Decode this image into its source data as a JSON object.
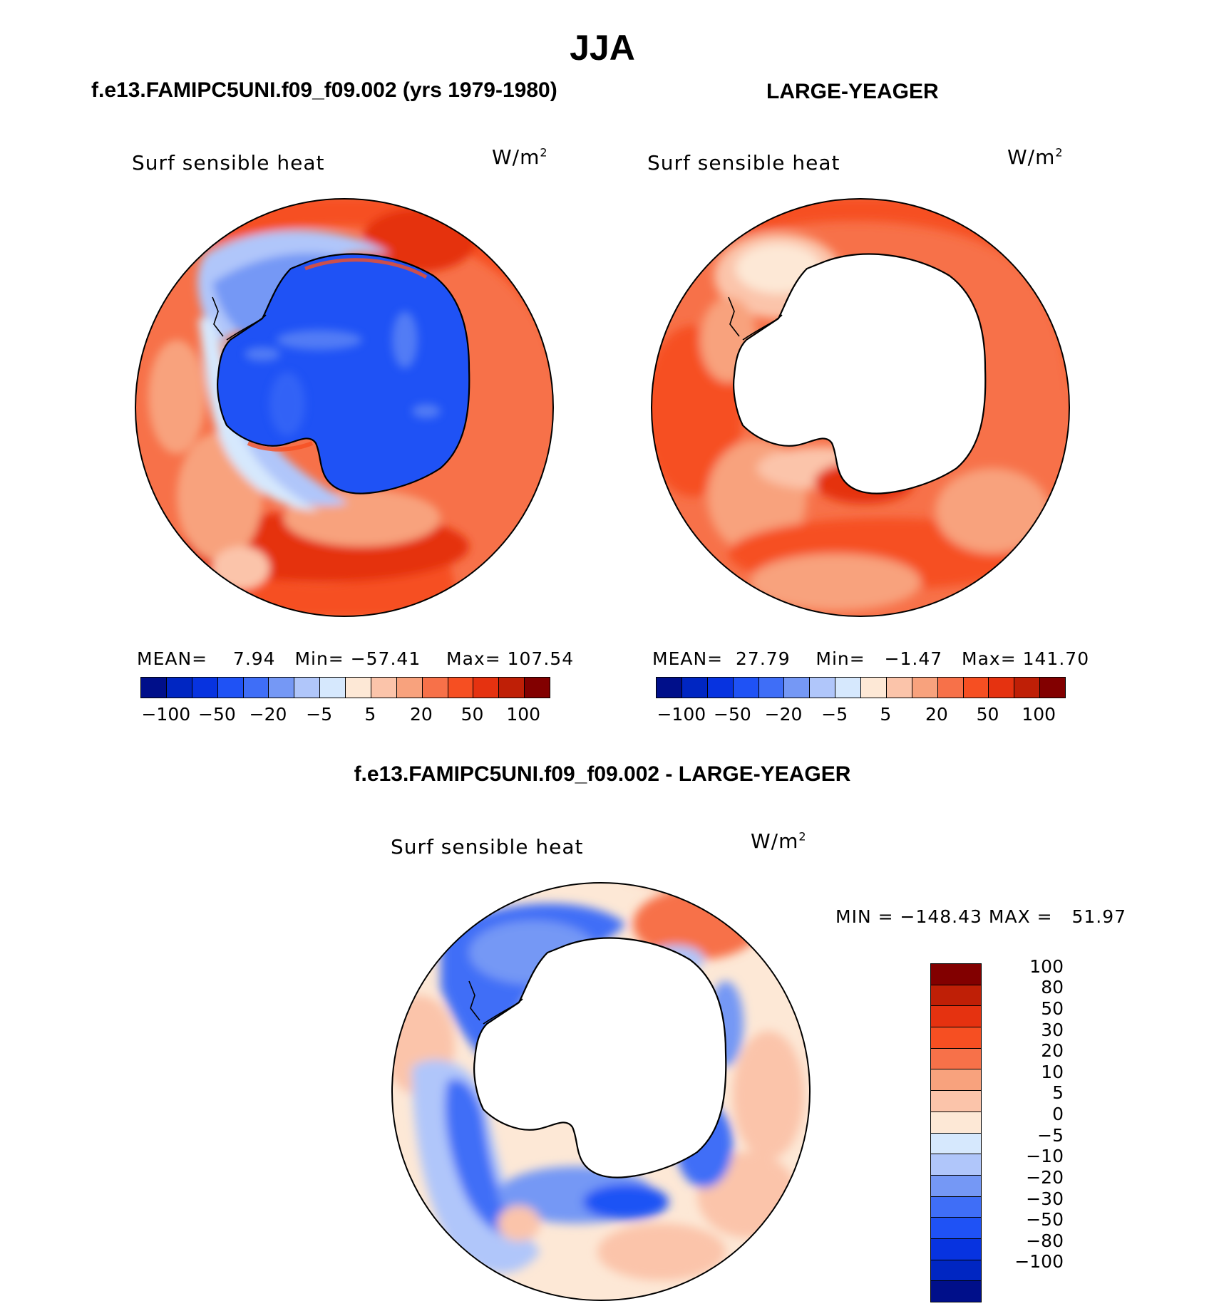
{
  "page_title": "JJA",
  "panels": [
    {
      "id": "model",
      "case_title": "f.e13.FAMIPC5UNI.f09_f09.002 (yrs 1979-1980)",
      "variable": "Surf sensible heat",
      "units": "W/m",
      "units_sup": "2",
      "stats": {
        "mean_label": "MEAN=",
        "mean": "7.94",
        "min_label": "Min=",
        "min": "−57.41",
        "max_label": "Max=",
        "max": "107.54"
      },
      "land_fill": "#1f52f5"
    },
    {
      "id": "obs",
      "case_title": "LARGE-YEAGER",
      "variable": "Surf sensible heat",
      "units": "W/m",
      "units_sup": "2",
      "stats": {
        "mean_label": "MEAN=",
        "mean": "27.79",
        "min_label": "Min=",
        "min": "−1.47",
        "max_label": "Max=",
        "max": "141.70"
      },
      "land_fill": "#ffffff"
    }
  ],
  "diff_panel": {
    "case_title": "f.e13.FAMIPC5UNI.f09_f09.002 - LARGE-YEAGER",
    "variable": "Surf sensible heat",
    "units": "W/m",
    "units_sup": "2",
    "stats": {
      "min_label": "MIN",
      "eq": "=",
      "min": "−148.43",
      "max_label": "MAX",
      "max": "51.97"
    }
  },
  "colorbar_horizontal": {
    "colors": [
      "#000f8a",
      "#0026c2",
      "#0733e0",
      "#1f52f5",
      "#3f6ef7",
      "#7598f5",
      "#b0c6fa",
      "#d6e8fd",
      "#fde8d6",
      "#fbc4aa",
      "#f8a27d",
      "#f77149",
      "#f64f22",
      "#e53210",
      "#bf1f06",
      "#820000"
    ],
    "tick_labels": [
      "−100",
      "−50",
      "−20",
      "−5",
      "5",
      "20",
      "50",
      "100"
    ]
  },
  "colorbar_vertical": {
    "colors_top_to_bottom": [
      "#820000",
      "#bf1f06",
      "#e53210",
      "#f64f22",
      "#f77149",
      "#f8a27d",
      "#fbc4aa",
      "#fde8d6",
      "#d6e8fd",
      "#b0c6fa",
      "#7598f5",
      "#3f6ef7",
      "#1f52f5",
      "#0733e0",
      "#0026c2",
      "#000f8a"
    ],
    "tick_labels": [
      "100",
      "80",
      "50",
      "30",
      "20",
      "10",
      "5",
      "0",
      "−5",
      "−10",
      "−20",
      "−30",
      "−50",
      "−80",
      "−100"
    ]
  }
}
